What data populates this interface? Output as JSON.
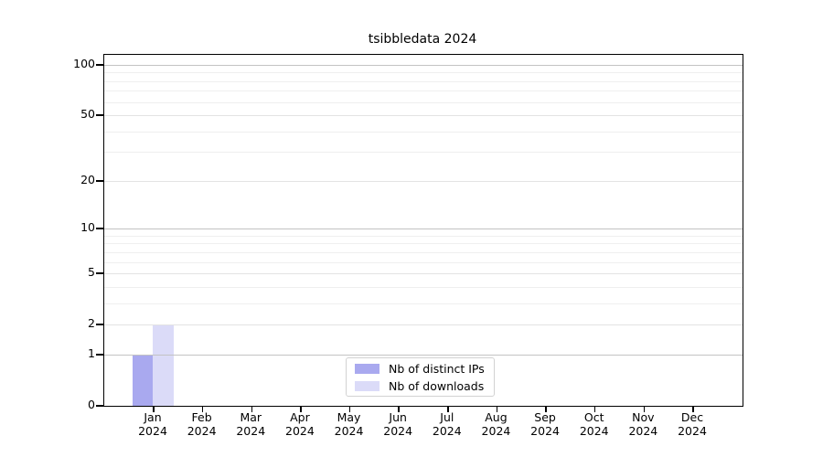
{
  "colors": {
    "axis": "#000000",
    "decade_grid": "#c3c3c3",
    "major_grid": "#e3e3e3",
    "minor_grid": "#efefef",
    "legend_border": "#d2d2d2",
    "background": "#ffffff"
  },
  "chart_data": {
    "type": "bar",
    "title": "tsibbledata 2024",
    "x_tick_labels": [
      "Jan\n2024",
      "Feb\n2024",
      "Mar\n2024",
      "Apr\n2024",
      "May\n2024",
      "Jun\n2024",
      "Jul\n2024",
      "Aug\n2024",
      "Sep\n2024",
      "Oct\n2024",
      "Nov\n2024",
      "Dec\n2024"
    ],
    "series": [
      {
        "name": "Nb of distinct IPs",
        "color": "#a9a9ef",
        "values": [
          1,
          0,
          0,
          0,
          0,
          0,
          0,
          0,
          0,
          0,
          0,
          0
        ]
      },
      {
        "name": "Nb of downloads",
        "color": "#dbdbf8",
        "values": [
          2,
          0,
          0,
          0,
          0,
          0,
          0,
          0,
          0,
          0,
          0,
          0
        ]
      }
    ],
    "y_axis": {
      "scale": "log1p",
      "range": [
        0,
        100
      ],
      "tick_values": [
        0,
        1,
        2,
        5,
        10,
        20,
        50,
        100
      ],
      "decade_gridlines": [
        1,
        10,
        100
      ],
      "major_gridlines": [
        2,
        5,
        20,
        50
      ],
      "minor_gridlines": [
        3,
        4,
        6,
        7,
        8,
        9,
        30,
        40,
        60,
        70,
        80,
        90
      ]
    },
    "legend": {
      "position": "lower-center-inside"
    },
    "grid": "horizontal major+minor",
    "xlabel": "",
    "ylabel": ""
  }
}
